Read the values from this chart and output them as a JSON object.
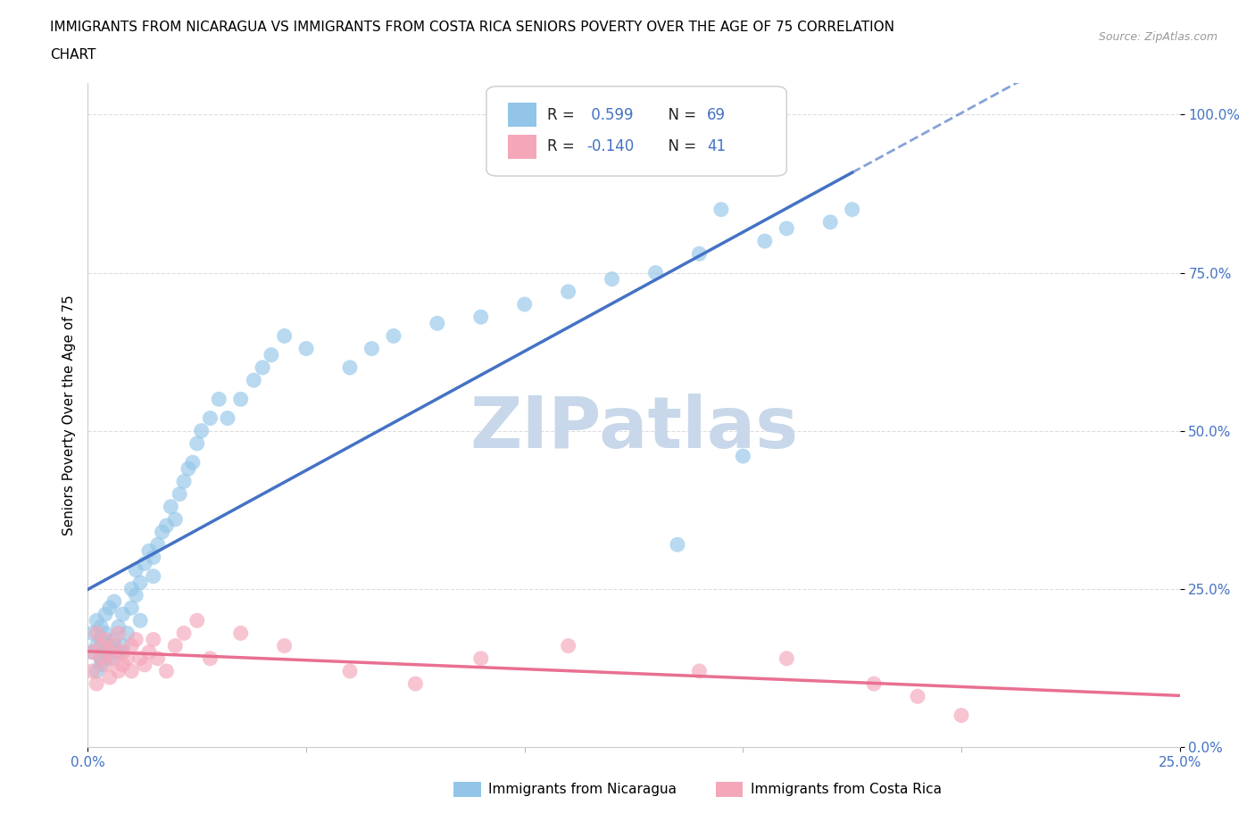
{
  "title_line1": "IMMIGRANTS FROM NICARAGUA VS IMMIGRANTS FROM COSTA RICA SENIORS POVERTY OVER THE AGE OF 75 CORRELATION",
  "title_line2": "CHART",
  "source": "Source: ZipAtlas.com",
  "ylabel": "Seniors Poverty Over the Age of 75",
  "xlim": [
    0.0,
    0.25
  ],
  "ylim": [
    0.0,
    1.05
  ],
  "yticks": [
    0.0,
    0.25,
    0.5,
    0.75,
    1.0
  ],
  "yticklabels": [
    "0.0%",
    "25.0%",
    "50.0%",
    "75.0%",
    "100.0%"
  ],
  "xtick_left_label": "0.0%",
  "xtick_right_label": "25.0%",
  "nicaragua_color": "#92C5E8",
  "costa_rica_color": "#F4A7B9",
  "nicaragua_line_color": "#4472C4",
  "costa_rica_line_color": "#E87090",
  "tick_color": "#4472C4",
  "R_nicaragua": 0.599,
  "N_nicaragua": 69,
  "R_costa_rica": -0.14,
  "N_costa_rica": 41,
  "nicaragua_x": [
    0.001,
    0.001,
    0.002,
    0.002,
    0.002,
    0.003,
    0.003,
    0.003,
    0.003,
    0.004,
    0.004,
    0.004,
    0.005,
    0.005,
    0.005,
    0.006,
    0.006,
    0.007,
    0.007,
    0.008,
    0.008,
    0.009,
    0.01,
    0.01,
    0.011,
    0.011,
    0.012,
    0.012,
    0.013,
    0.014,
    0.015,
    0.015,
    0.016,
    0.017,
    0.018,
    0.019,
    0.02,
    0.021,
    0.022,
    0.023,
    0.024,
    0.025,
    0.026,
    0.028,
    0.03,
    0.032,
    0.035,
    0.038,
    0.04,
    0.042,
    0.045,
    0.05,
    0.06,
    0.065,
    0.07,
    0.08,
    0.09,
    0.1,
    0.11,
    0.12,
    0.13,
    0.14,
    0.155,
    0.16,
    0.17,
    0.175,
    0.15,
    0.135,
    0.145
  ],
  "nicaragua_y": [
    0.15,
    0.18,
    0.12,
    0.2,
    0.16,
    0.14,
    0.17,
    0.19,
    0.13,
    0.21,
    0.15,
    0.18,
    0.22,
    0.14,
    0.16,
    0.23,
    0.17,
    0.15,
    0.19,
    0.21,
    0.16,
    0.18,
    0.22,
    0.25,
    0.24,
    0.28,
    0.2,
    0.26,
    0.29,
    0.31,
    0.27,
    0.3,
    0.32,
    0.34,
    0.35,
    0.38,
    0.36,
    0.4,
    0.42,
    0.44,
    0.45,
    0.48,
    0.5,
    0.52,
    0.55,
    0.52,
    0.55,
    0.58,
    0.6,
    0.62,
    0.65,
    0.63,
    0.6,
    0.63,
    0.65,
    0.67,
    0.68,
    0.7,
    0.72,
    0.74,
    0.75,
    0.78,
    0.8,
    0.82,
    0.83,
    0.85,
    0.46,
    0.32,
    0.85
  ],
  "costa_rica_x": [
    0.001,
    0.001,
    0.002,
    0.002,
    0.003,
    0.003,
    0.004,
    0.004,
    0.005,
    0.005,
    0.006,
    0.006,
    0.007,
    0.007,
    0.008,
    0.008,
    0.009,
    0.01,
    0.01,
    0.011,
    0.012,
    0.013,
    0.014,
    0.015,
    0.016,
    0.018,
    0.02,
    0.022,
    0.025,
    0.028,
    0.035,
    0.045,
    0.06,
    0.075,
    0.09,
    0.11,
    0.14,
    0.16,
    0.18,
    0.19,
    0.2
  ],
  "costa_rica_y": [
    0.15,
    0.12,
    0.18,
    0.1,
    0.14,
    0.16,
    0.13,
    0.17,
    0.15,
    0.11,
    0.14,
    0.16,
    0.12,
    0.18,
    0.15,
    0.13,
    0.14,
    0.16,
    0.12,
    0.17,
    0.14,
    0.13,
    0.15,
    0.17,
    0.14,
    0.12,
    0.16,
    0.18,
    0.2,
    0.14,
    0.18,
    0.16,
    0.12,
    0.1,
    0.14,
    0.16,
    0.12,
    0.14,
    0.1,
    0.08,
    0.05
  ],
  "watermark": "ZIPatlas",
  "watermark_color": "#C8D8EA",
  "background_color": "#FFFFFF",
  "grid_color": "#DDDDDD",
  "legend_label1": "Immigrants from Nicaragua",
  "legend_label2": "Immigrants from Costa Rica"
}
